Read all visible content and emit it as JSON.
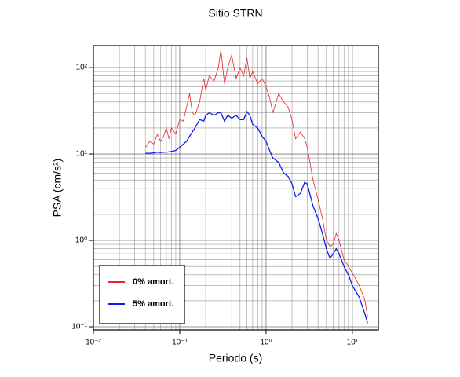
{
  "chart_data": {
    "type": "line",
    "title": "Sitio STRN",
    "x_label": "Periodo (s)",
    "y_label": "PSA (cm/s²)",
    "log_x": true,
    "log_y": true,
    "grid": true,
    "legend_position": "lower-left",
    "xlim": [
      0.01,
      20
    ],
    "ylim": [
      0.092,
      180
    ],
    "xticks": [
      {
        "value": 0.01,
        "label": "10⁻²"
      },
      {
        "value": 0.1,
        "label": "10⁻¹"
      },
      {
        "value": 1,
        "label": "10⁰"
      },
      {
        "value": 10,
        "label": "10¹"
      }
    ],
    "yticks": [
      {
        "value": 0.1,
        "label": "10⁻¹"
      },
      {
        "value": 1,
        "label": "10⁰"
      },
      {
        "value": 10,
        "label": "10¹"
      },
      {
        "value": 100,
        "label": "10²"
      }
    ],
    "xminorticks": [
      0.02,
      0.03,
      0.04,
      0.05,
      0.06,
      0.07,
      0.08,
      0.09,
      0.2,
      0.3,
      0.4,
      0.5,
      0.6,
      0.7,
      0.8,
      0.9,
      2,
      3,
      4,
      5,
      6,
      7,
      8,
      9,
      20
    ],
    "yminorticks": [
      0.2,
      0.3,
      0.4,
      0.5,
      0.6,
      0.7,
      0.8,
      0.9,
      2,
      3,
      4,
      5,
      6,
      7,
      8,
      9,
      20,
      30,
      40,
      50,
      60,
      70,
      80,
      90
    ],
    "x": [
      0.04,
      0.045,
      0.05,
      0.055,
      0.06,
      0.065,
      0.07,
      0.075,
      0.08,
      0.09,
      0.1,
      0.11,
      0.12,
      0.13,
      0.14,
      0.15,
      0.17,
      0.19,
      0.2,
      0.22,
      0.25,
      0.28,
      0.3,
      0.33,
      0.36,
      0.4,
      0.45,
      0.5,
      0.55,
      0.6,
      0.65,
      0.7,
      0.8,
      0.9,
      1.0,
      1.1,
      1.2,
      1.4,
      1.6,
      1.8,
      2.0,
      2.2,
      2.5,
      2.8,
      3.0,
      3.5,
      4.0,
      4.5,
      5.0,
      5.5,
      6.0,
      6.5,
      7.0,
      8,
      9,
      10,
      12,
      14,
      15
    ],
    "series": [
      {
        "name": "0% amort.",
        "color": "#e8232a",
        "values": [
          12,
          14,
          13,
          17,
          14,
          16,
          20,
          15,
          20,
          17,
          25,
          24,
          35,
          50,
          30,
          28,
          40,
          75,
          55,
          80,
          70,
          100,
          160,
          65,
          100,
          140,
          75,
          100,
          80,
          130,
          75,
          90,
          65,
          75,
          60,
          45,
          30,
          50,
          40,
          35,
          25,
          15,
          18,
          15,
          12,
          5,
          3,
          1.8,
          1.0,
          0.85,
          0.9,
          1.2,
          1.0,
          0.6,
          0.5,
          0.42,
          0.3,
          0.2,
          0.13
        ]
      },
      {
        "name": "5% amort.",
        "color": "#0a1ee8",
        "values": [
          10.2,
          10.2,
          10.3,
          10.5,
          10.4,
          10.5,
          10.5,
          10.6,
          10.7,
          11,
          12,
          13,
          14,
          16,
          18,
          20,
          25,
          24,
          28,
          30,
          28,
          30,
          30,
          24,
          28,
          26,
          28,
          25,
          25,
          31,
          28,
          22,
          20,
          16,
          14,
          11,
          9,
          8,
          6,
          5.5,
          4.5,
          3.2,
          3.5,
          4.7,
          4.5,
          2.5,
          1.8,
          1.2,
          0.8,
          0.62,
          0.7,
          0.8,
          0.7,
          0.5,
          0.4,
          0.3,
          0.22,
          0.14,
          0.11
        ]
      }
    ]
  }
}
